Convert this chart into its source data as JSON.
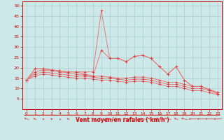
{
  "bg_color": "#cde8e8",
  "grid_color": "#aacfcf",
  "line_color": "#e87878",
  "marker_color": "#d04040",
  "xlabel": "Vent moyen/en rafales ( km/h )",
  "xlabel_color": "#cc0000",
  "tick_color": "#cc0000",
  "xlim": [
    -0.5,
    23.5
  ],
  "ylim": [
    0,
    52
  ],
  "yticks": [
    5,
    10,
    15,
    20,
    25,
    30,
    35,
    40,
    45,
    50
  ],
  "xticks": [
    0,
    1,
    2,
    3,
    4,
    5,
    6,
    7,
    8,
    9,
    10,
    11,
    12,
    13,
    14,
    15,
    16,
    17,
    18,
    19,
    20,
    21,
    22,
    23
  ],
  "line1_x": [
    0,
    1,
    2,
    3,
    4,
    5,
    6,
    7,
    8,
    9,
    10,
    11,
    12,
    13,
    14,
    15,
    16,
    17,
    18,
    19,
    20,
    21,
    22,
    23
  ],
  "line1_y": [
    14,
    19.5,
    19.5,
    19,
    18.5,
    18,
    18,
    18,
    18,
    47.5,
    24.5,
    24.5,
    23,
    25.5,
    26,
    24.5,
    20.5,
    17,
    20.5,
    14,
    11,
    11,
    9.5,
    8
  ],
  "line2_x": [
    0,
    1,
    2,
    3,
    4,
    5,
    6,
    7,
    8,
    9,
    10,
    11,
    12,
    13,
    14,
    15,
    16,
    17,
    18,
    19,
    20,
    21,
    22,
    23
  ],
  "line2_y": [
    14,
    19.5,
    19.5,
    19,
    18.5,
    18,
    18,
    17,
    16,
    28.5,
    24.5,
    24.5,
    23,
    25.5,
    26,
    24.5,
    20.5,
    17,
    20.5,
    14,
    11,
    11,
    9.5,
    8
  ],
  "line3_x": [
    0,
    1,
    2,
    3,
    4,
    5,
    6,
    7,
    8,
    9,
    10,
    11,
    12,
    13,
    14,
    15,
    16,
    17,
    18,
    19,
    20,
    21,
    22,
    23
  ],
  "line3_y": [
    14,
    18,
    19,
    18.5,
    18,
    17.5,
    17,
    16.5,
    16,
    16,
    15.5,
    15,
    15,
    15.5,
    15.5,
    15,
    14,
    13,
    13,
    12,
    11,
    11,
    9.5,
    8
  ],
  "line4_x": [
    0,
    1,
    2,
    3,
    4,
    5,
    6,
    7,
    8,
    9,
    10,
    11,
    12,
    13,
    14,
    15,
    16,
    17,
    18,
    19,
    20,
    21,
    22,
    23
  ],
  "line4_y": [
    14,
    17,
    18,
    17.5,
    17,
    16.5,
    16,
    16,
    15.5,
    15,
    15,
    14.5,
    14,
    14.5,
    14.5,
    14,
    13,
    12,
    12,
    11,
    10,
    10,
    9,
    7.5
  ],
  "line5_x": [
    0,
    1,
    2,
    3,
    4,
    5,
    6,
    7,
    8,
    9,
    10,
    11,
    12,
    13,
    14,
    15,
    16,
    17,
    18,
    19,
    20,
    21,
    22,
    23
  ],
  "line5_y": [
    14,
    16,
    17,
    16.5,
    16,
    15.5,
    15,
    15,
    14.5,
    14,
    14,
    13.5,
    13,
    13.5,
    13.5,
    13,
    12,
    11,
    11,
    10,
    9,
    9,
    8,
    7
  ],
  "arrow_angles_deg": [
    225,
    215,
    200,
    205,
    195,
    210,
    195,
    210,
    220,
    230,
    240,
    245,
    245,
    250,
    255,
    245,
    240,
    240,
    220,
    240,
    270,
    270,
    270,
    275
  ]
}
